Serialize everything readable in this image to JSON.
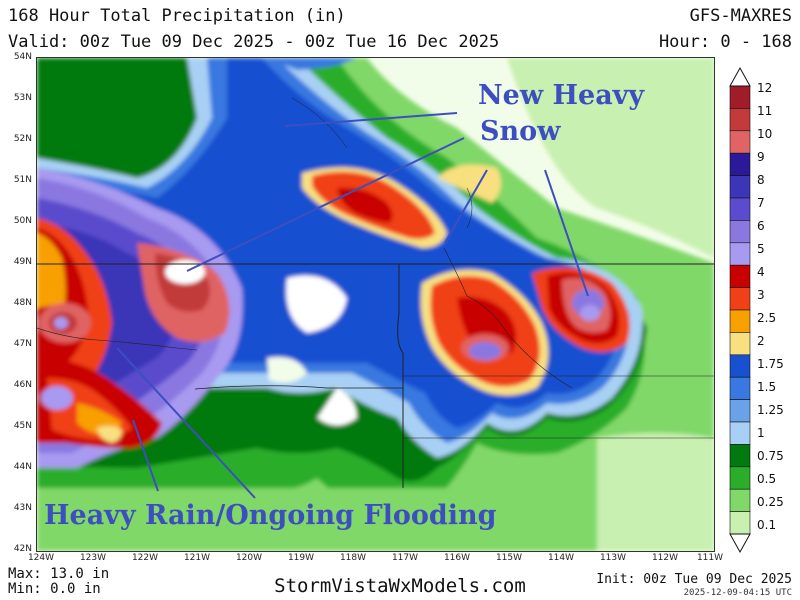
{
  "header": {
    "title": "168 Hour Total Precipitation (in)",
    "model": "GFS-MAXRES",
    "valid": "Valid: 00z Tue 09 Dec 2025 - 00z Tue 16 Dec 2025",
    "hour": "Hour: 0 - 168"
  },
  "axes": {
    "lat_labels": [
      "54N",
      "53N",
      "52N",
      "51N",
      "50N",
      "49N",
      "48N",
      "47N",
      "46N",
      "45N",
      "44N",
      "43N",
      "42N"
    ],
    "lon_labels": [
      "124W",
      "123W",
      "122W",
      "121W",
      "120W",
      "119W",
      "118W",
      "117W",
      "116W",
      "115W",
      "114W",
      "113W",
      "112W",
      "111W"
    ]
  },
  "colorbar": {
    "labels": [
      "12",
      "11",
      "10",
      "9",
      "8",
      "7",
      "6",
      "5",
      "4",
      "3",
      "2.5",
      "2",
      "1.75",
      "1.5",
      "1.25",
      "1",
      "0.75",
      "0.5",
      "0.25",
      "0.1"
    ],
    "colors": [
      "#a01c28",
      "#c23a3a",
      "#e06464",
      "#2a1a9a",
      "#3b36b8",
      "#5a4ccc",
      "#8a78e0",
      "#a89af0",
      "#c80000",
      "#f04018",
      "#f8a000",
      "#f8e080",
      "#1850d0",
      "#3878e0",
      "#6aa2ea",
      "#a8d0f4",
      "#007a10",
      "#2aae2a",
      "#80d868",
      "#c8f0b0"
    ]
  },
  "annotations": {
    "snow_line1": "New Heavy",
    "snow_line2": "Snow",
    "rain": "Heavy Rain/Ongoing Flooding"
  },
  "footer": {
    "max": "Max: 13.0 in",
    "min": "Min: 0.0 in",
    "site": "StormVistaWxModels.com",
    "init": "Init: 00z Tue 09 Dec 2025",
    "stamp": "2025-12-09-04:15 UTC"
  }
}
